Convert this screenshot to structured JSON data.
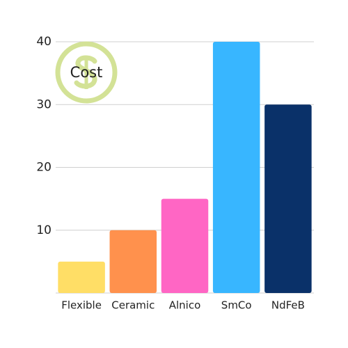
{
  "chart_data": {
    "type": "bar",
    "title": "Cost",
    "categories": [
      "Flexible",
      "Ceramic",
      "Alnico",
      "SmCo",
      "NdFeB"
    ],
    "values": [
      5,
      10,
      15,
      40,
      30
    ],
    "colors": [
      "#ffde66",
      "#ff914d",
      "#ff66c4",
      "#38b6ff",
      "#0a3169"
    ],
    "ylim": [
      0,
      40
    ],
    "yticks": [
      10,
      20,
      30,
      40
    ],
    "grid": true
  }
}
